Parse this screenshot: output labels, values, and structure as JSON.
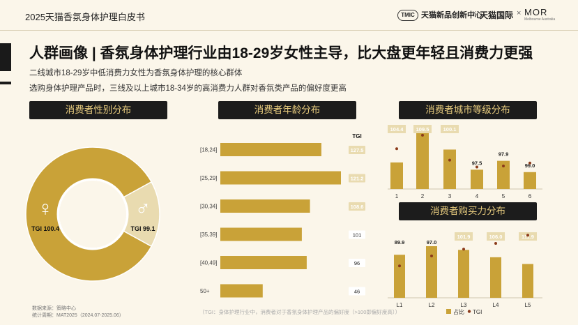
{
  "header": {
    "title": "2025天猫香氛身体护理白皮书",
    "brand_tmic_badge": "TMIC",
    "brand_tmic": "天猫新品创新中心",
    "separator": "×",
    "brand_tmall": "天猫国际",
    "brand_mor": "MOR",
    "brand_mor_sub": "Melbourne Australia"
  },
  "headline": "人群画像 | 香氛身体护理行业由18-29岁女性主导，比大盘更年轻且消费力更强",
  "subtitle_1": "二线城市18-29岁中低消费力女性为香氛身体护理的核心群体",
  "subtitle_2": "选购身体护理产品时，三线及以上城市18-34岁的高消费力人群对香氛类产品的偏好度更高",
  "sections": {
    "gender": "消费者性别分布",
    "age": "消费者年龄分布",
    "city": "消费者城市等级分布",
    "purchase": "消费者购买力分布"
  },
  "footer": {
    "source": "数据来源：策略中心",
    "period": "统计周期：MAT2025（2024.07-2025.06）",
    "note": "（TGI：身体护理行业中，消费者对于香氛身体护理产品的偏好度（>100即偏好度高））"
  },
  "colors": {
    "dark": "#1c1c1c",
    "gold": "#c9a238",
    "light_gold": "#e9dbb0",
    "tgi_dot": "#8b3a1a",
    "bg": "#fbf6ea"
  },
  "chart_data": [
    {
      "type": "pie",
      "name": "gender",
      "categories": [
        "女",
        "男"
      ],
      "values": [
        84,
        16
      ],
      "tgi": [
        100.4,
        99.1
      ],
      "labels": [
        "TGI 100.4",
        "TGI 99.1"
      ],
      "icons": [
        "female-symbol",
        "male-symbol"
      ]
    },
    {
      "type": "bar",
      "name": "age",
      "orientation": "horizontal",
      "categories": [
        "[18,24]",
        "[25,29]",
        "[30,34]",
        "[35,39]",
        "[40,49]",
        "50+"
      ],
      "values": [
        31,
        37,
        27.5,
        25,
        26.5,
        13
      ],
      "tgi_header": "TGI",
      "tgi": [
        "127.5",
        "121.2",
        "108.6",
        "101",
        "96",
        "46"
      ],
      "tgi_highlight": [
        true,
        true,
        true,
        false,
        false,
        false
      ]
    },
    {
      "type": "bar",
      "name": "city",
      "categories": [
        "1",
        "2",
        "3",
        "4",
        "5",
        "6"
      ],
      "values": [
        33,
        78,
        49,
        24,
        35,
        21
      ],
      "tgi": [
        104.4,
        109.5,
        100.1,
        97.5,
        97.9,
        99.0
      ],
      "tgi_labels": [
        "104.4",
        "109.5",
        "100.1",
        "97.5",
        "97.9",
        "99.0"
      ],
      "tgi_highlight": [
        true,
        true,
        true,
        false,
        false,
        false
      ]
    },
    {
      "type": "bar",
      "name": "purchase",
      "categories": [
        "L1",
        "L2",
        "L3",
        "L4",
        "L5"
      ],
      "values": [
        70,
        84,
        78,
        66,
        55
      ],
      "tgi": [
        89.9,
        97.0,
        101.9,
        106.0,
        111.9
      ],
      "tgi_labels": [
        "89.9",
        "97.0",
        "101.9",
        "106.0",
        "111.9"
      ],
      "tgi_highlight": [
        false,
        false,
        true,
        true,
        true
      ],
      "legend": [
        "占比",
        "TGI"
      ]
    }
  ]
}
